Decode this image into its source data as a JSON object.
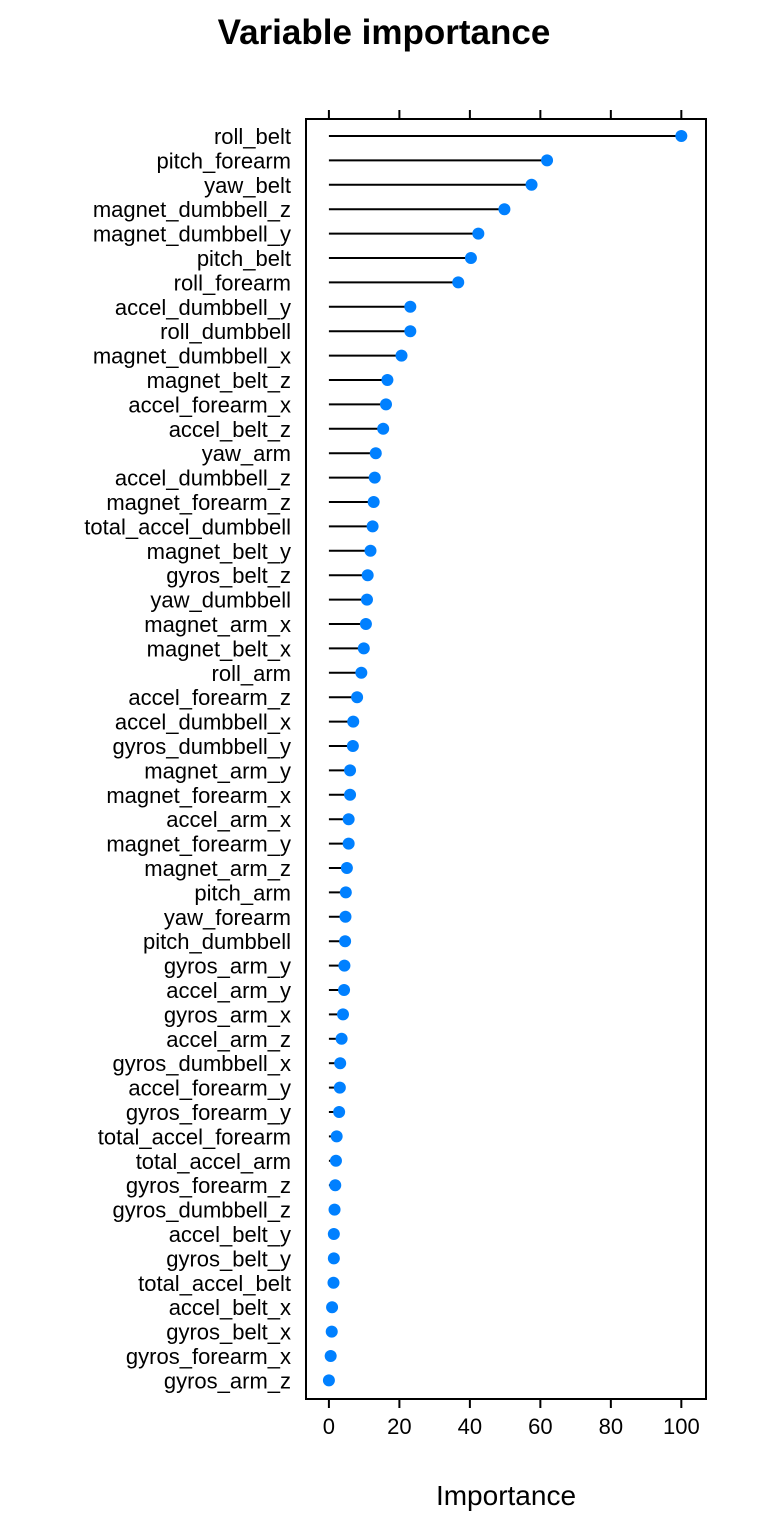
{
  "chart_data": {
    "type": "dotplot",
    "title": "Variable importance",
    "xlabel": "Importance",
    "xlim": [
      -6.5,
      107
    ],
    "x_ticks": [
      0,
      20,
      40,
      60,
      80,
      100
    ],
    "point_color": "#0080ff",
    "categories": [
      "roll_belt",
      "pitch_forearm",
      "yaw_belt",
      "magnet_dumbbell_z",
      "magnet_dumbbell_y",
      "pitch_belt",
      "roll_forearm",
      "accel_dumbbell_y",
      "roll_dumbbell",
      "magnet_dumbbell_x",
      "magnet_belt_z",
      "accel_forearm_x",
      "accel_belt_z",
      "yaw_arm",
      "accel_dumbbell_z",
      "magnet_forearm_z",
      "total_accel_dumbbell",
      "magnet_belt_y",
      "gyros_belt_z",
      "yaw_dumbbell",
      "magnet_arm_x",
      "magnet_belt_x",
      "roll_arm",
      "accel_forearm_z",
      "accel_dumbbell_x",
      "gyros_dumbbell_y",
      "magnet_arm_y",
      "magnet_forearm_x",
      "accel_arm_x",
      "magnet_forearm_y",
      "magnet_arm_z",
      "pitch_arm",
      "yaw_forearm",
      "pitch_dumbbell",
      "gyros_arm_y",
      "accel_arm_y",
      "gyros_arm_x",
      "accel_arm_z",
      "gyros_dumbbell_x",
      "accel_forearm_y",
      "gyros_forearm_y",
      "total_accel_forearm",
      "total_accel_arm",
      "gyros_forearm_z",
      "gyros_dumbbell_z",
      "accel_belt_y",
      "gyros_belt_y",
      "total_accel_belt",
      "accel_belt_x",
      "gyros_belt_x",
      "gyros_forearm_x",
      "gyros_arm_z"
    ],
    "values": [
      100,
      61.9,
      57.5,
      49.8,
      42.4,
      40.3,
      36.7,
      23.1,
      23.1,
      20.6,
      16.6,
      16.2,
      15.4,
      13.3,
      13.0,
      12.7,
      12.4,
      11.8,
      11.0,
      10.8,
      10.5,
      9.9,
      9.2,
      8.0,
      6.9,
      6.8,
      6.0,
      6.0,
      5.6,
      5.6,
      5.1,
      4.8,
      4.7,
      4.6,
      4.4,
      4.3,
      4.0,
      3.6,
      3.2,
      3.1,
      2.9,
      2.2,
      2.0,
      1.8,
      1.6,
      1.4,
      1.4,
      1.3,
      0.9,
      0.8,
      0.5,
      0
    ]
  }
}
